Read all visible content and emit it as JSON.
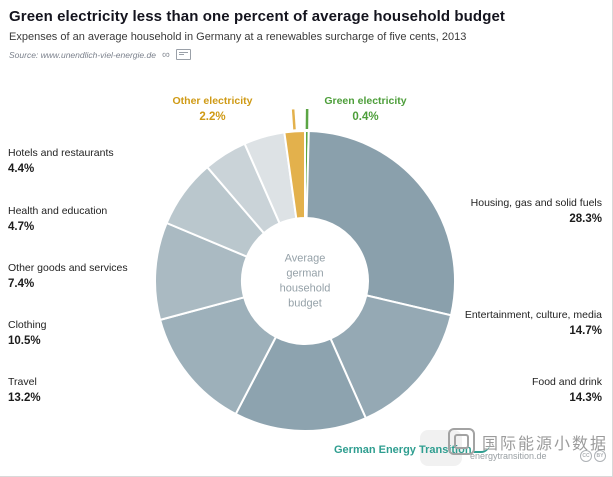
{
  "header": {
    "title": "Green electricity less than one percent of average household budget",
    "subtitle": "Expenses of an average household in Germany at a renewables surcharge of five cents, 2013",
    "source": "Source: www.unendlich-viel-energie.de"
  },
  "chart_data": {
    "type": "pie",
    "variant": "donut",
    "title": "Green electricity less than one percent of average household budget",
    "center_label": "Average\ngerman\nhousehold\nbudget",
    "unit": "%",
    "segments": [
      {
        "label": "Green electricity",
        "value": 0.4,
        "pct": "0.4%",
        "color": "#5ba544",
        "label_color": "#4d9e3a",
        "callout": true
      },
      {
        "label": "Housing, gas and solid fuels",
        "value": 28.3,
        "pct": "28.3%",
        "color": "#8aa0ac"
      },
      {
        "label": "Entertainment, culture, media",
        "value": 14.7,
        "pct": "14.7%",
        "color": "#95a9b4"
      },
      {
        "label": "Food and drink",
        "value": 14.3,
        "pct": "14.3%",
        "color": "#8da3af"
      },
      {
        "label": "Travel",
        "value": 13.2,
        "pct": "13.2%",
        "color": "#9db0ba"
      },
      {
        "label": "Clothing",
        "value": 10.5,
        "pct": "10.5%",
        "color": "#aabac2"
      },
      {
        "label": "Other goods and services",
        "value": 7.4,
        "pct": "7.4%",
        "color": "#bac7cd"
      },
      {
        "label": "Health and education",
        "value": 4.7,
        "pct": "4.7%",
        "color": "#cad3d8"
      },
      {
        "label": "Hotels and restaurants",
        "value": 4.4,
        "pct": "4.4%",
        "color": "#dde2e5"
      },
      {
        "label": "Other electricity",
        "value": 2.2,
        "pct": "2.2%",
        "color": "#e3b14c",
        "label_color": "#cf9a15",
        "callout": true
      }
    ],
    "legend_position": "around",
    "grid": false
  },
  "footer": {
    "brand": "German Energy Transition",
    "site": "energytransition.de",
    "cc1": "CC",
    "cc2": "BY",
    "watermark": "国际能源小数据"
  }
}
